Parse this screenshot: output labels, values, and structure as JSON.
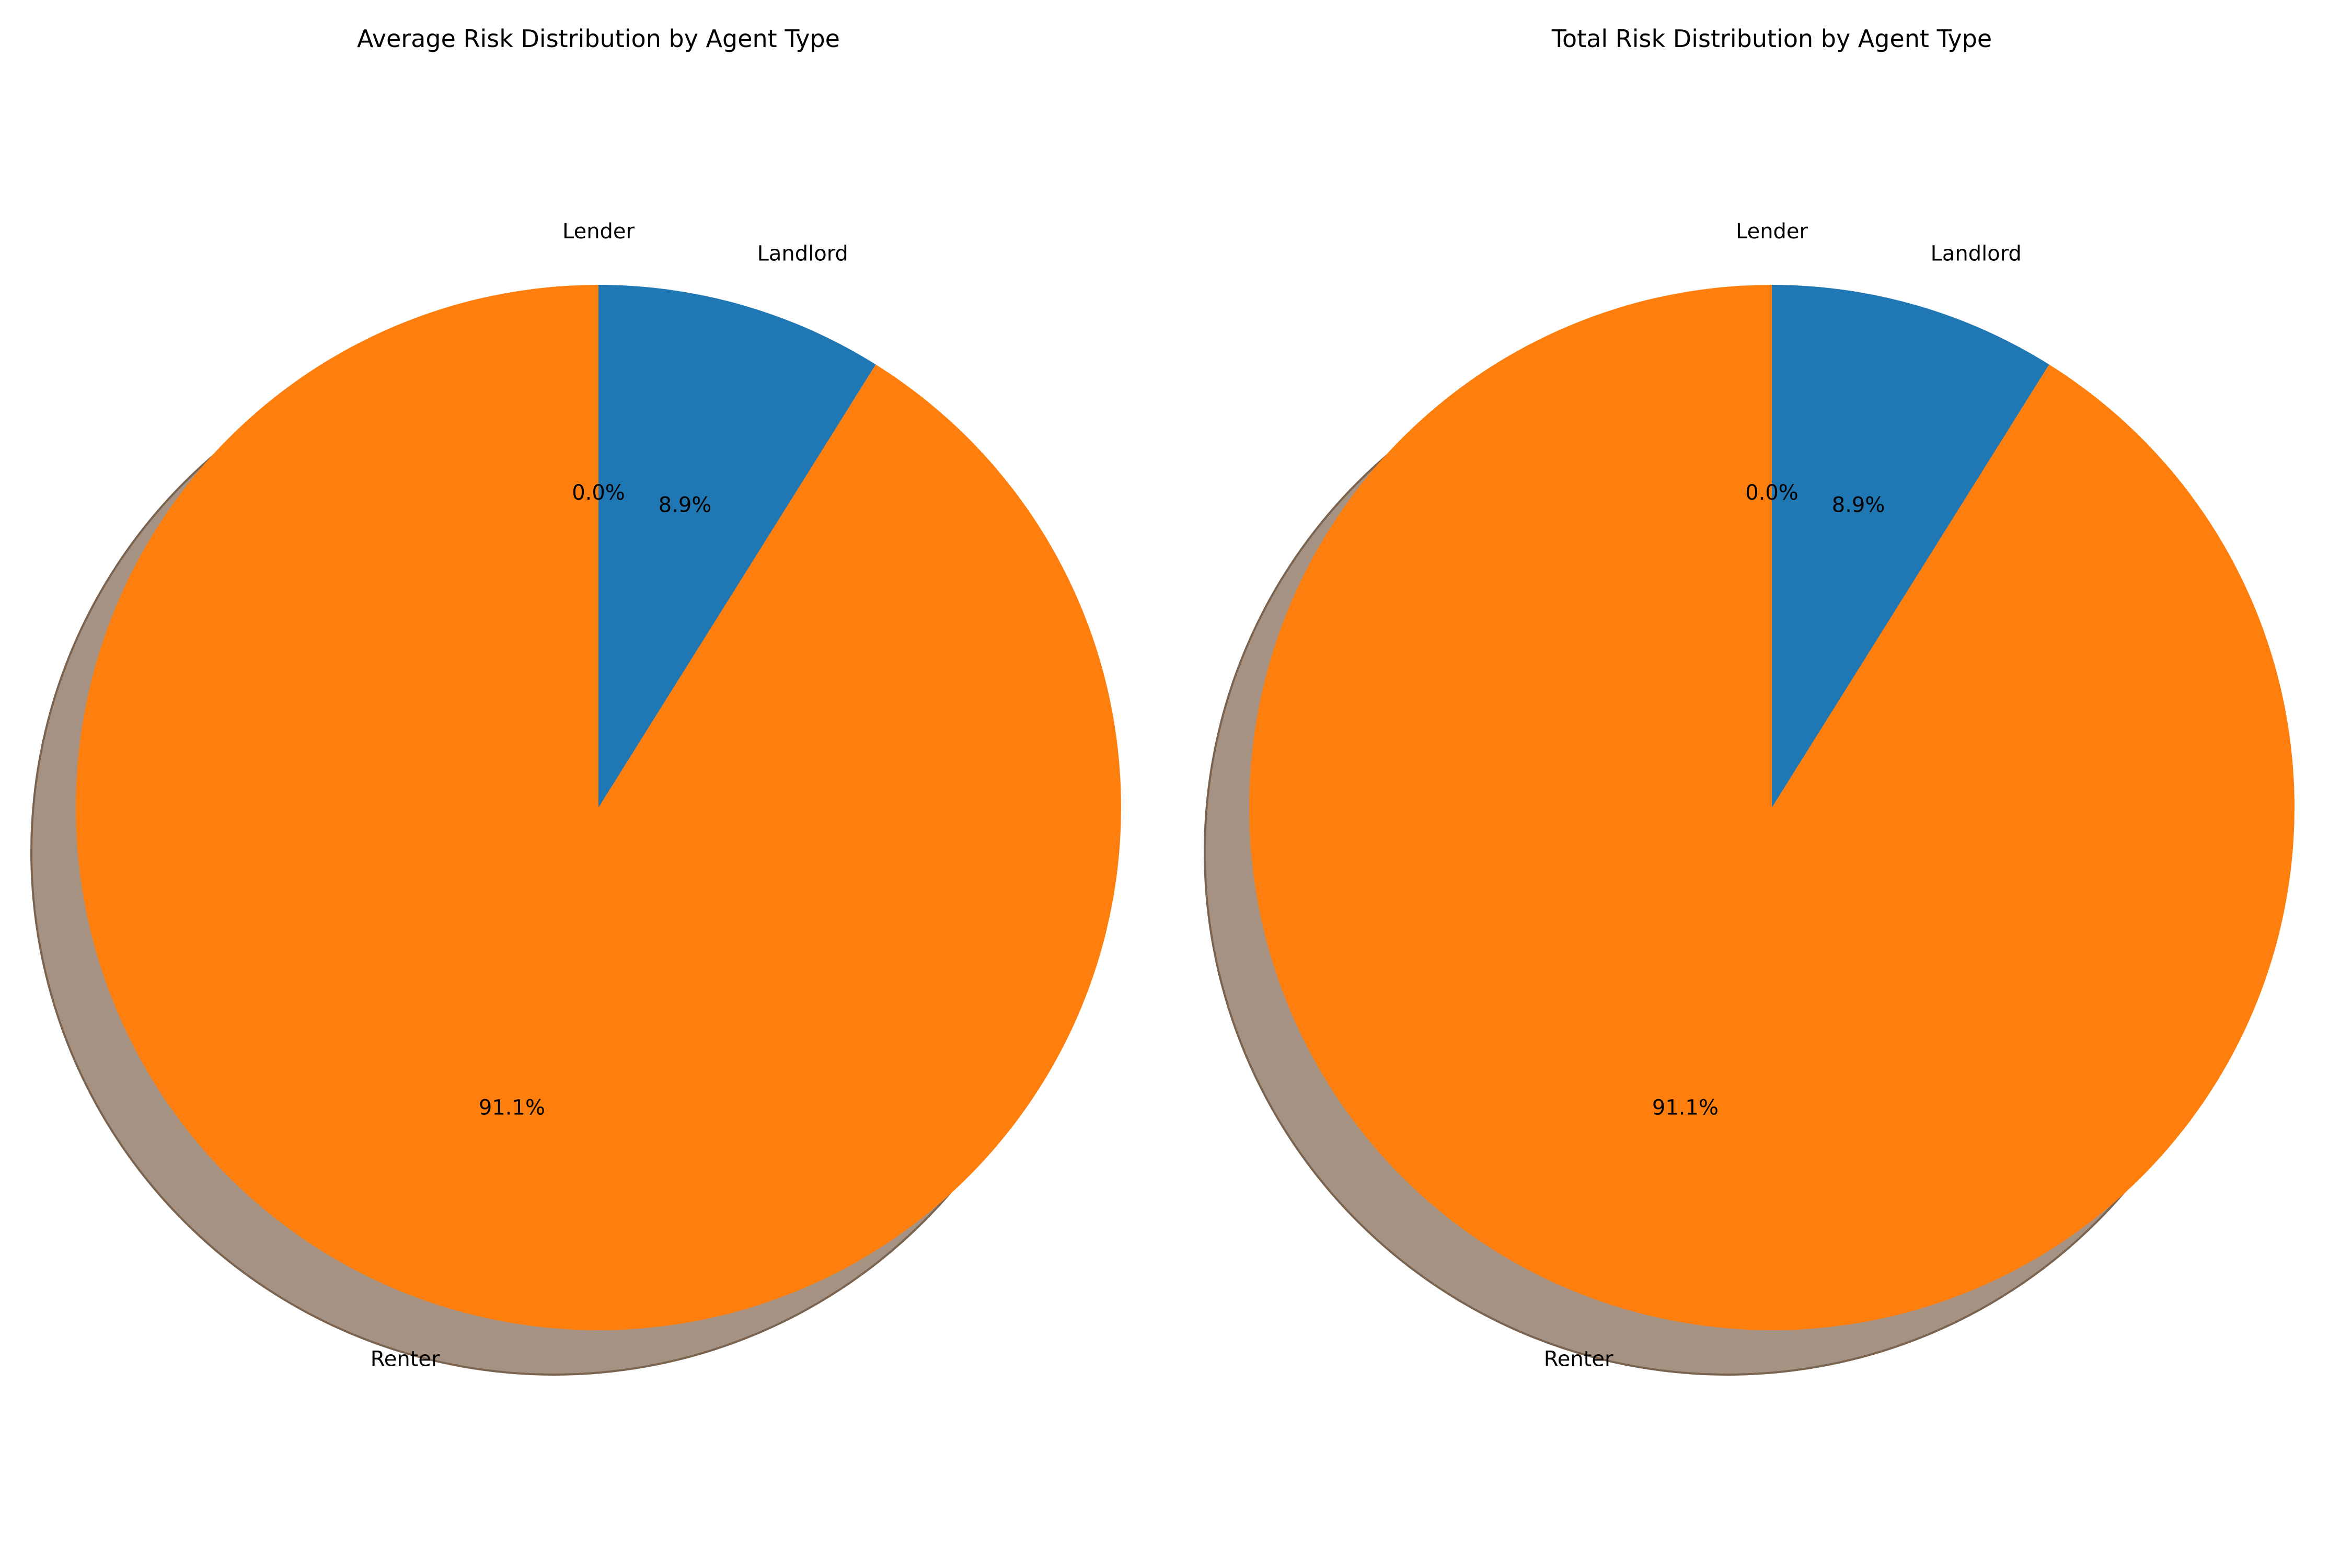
{
  "chart_data": [
    {
      "type": "pie",
      "title": "Average Risk Distribution by Agent Type",
      "categories": [
        "Renter",
        "Landlord",
        "Lender"
      ],
      "values": [
        91.1,
        8.9,
        0.0
      ],
      "percent_labels": [
        "91.1%",
        "8.9%",
        "0.0%"
      ],
      "colors": [
        "#ff7f0e",
        "#1f77b4",
        "#2ca02c"
      ],
      "shadow_color": "#a69282",
      "shadow": true,
      "start_angle_deg": 90,
      "direction": "counterclockwise"
    },
    {
      "type": "pie",
      "title": "Total Risk Distribution by Agent Type",
      "categories": [
        "Renter",
        "Landlord",
        "Lender"
      ],
      "values": [
        91.1,
        8.9,
        0.0
      ],
      "percent_labels": [
        "91.1%",
        "8.9%",
        "0.0%"
      ],
      "colors": [
        "#ff7f0e",
        "#1f77b4",
        "#2ca02c"
      ],
      "shadow_color": "#a69282",
      "shadow": true,
      "start_angle_deg": 90,
      "direction": "counterclockwise"
    }
  ]
}
